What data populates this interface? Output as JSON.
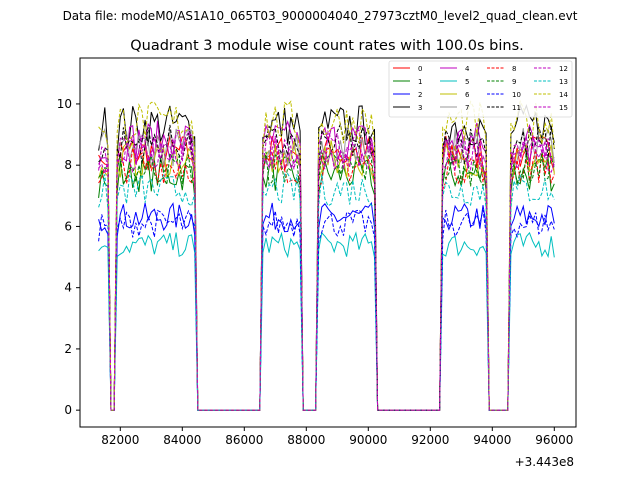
{
  "header": {
    "datafile": "Data file: modeM0/AS1A10_065T03_9000004040_27973cztM0_level2_quad_clean.evt"
  },
  "chart_data": {
    "type": "line",
    "title": "Quadrant 3 module wise count rates with 100.0s bins.",
    "xlabel": "",
    "ylabel": "",
    "x_offset_label": "+3.443e8",
    "xlim": [
      80700,
      96700
    ],
    "ylim": [
      -0.55,
      11.5
    ],
    "x_ticks": [
      82000,
      84000,
      86000,
      88000,
      90000,
      92000,
      94000,
      96000
    ],
    "x_tick_labels": [
      "82000",
      "84000",
      "86000",
      "88000",
      "90000",
      "92000",
      "94000",
      "96000"
    ],
    "y_ticks": [
      0,
      2,
      4,
      6,
      8,
      10
    ],
    "y_tick_labels": [
      "0",
      "2",
      "4",
      "6",
      "8",
      "10"
    ],
    "grid": false,
    "legend_position": "top-right",
    "x_start": 81300,
    "bin_seconds": 100,
    "segments": [
      {
        "x_start": 81300,
        "x_end": 81600
      },
      {
        "x_start": 81900,
        "x_end": 84400
      },
      {
        "x_start": 86600,
        "x_end": 87800
      },
      {
        "x_start": 88400,
        "x_end": 90200
      },
      {
        "x_start": 92400,
        "x_end": 93800
      },
      {
        "x_start": 94600,
        "x_end": 96000
      }
    ],
    "series": [
      {
        "name": "0",
        "color": "#ff0000",
        "dash": "solid",
        "level": 8.4
      },
      {
        "name": "1",
        "color": "#008000",
        "dash": "solid",
        "level": 7.7
      },
      {
        "name": "2",
        "color": "#0000ff",
        "dash": "solid",
        "level": 6.3
      },
      {
        "name": "3",
        "color": "#000000",
        "dash": "solid",
        "level": 9.3
      },
      {
        "name": "4",
        "color": "#bf00bf",
        "dash": "solid",
        "level": 8.8
      },
      {
        "name": "5",
        "color": "#00bfbf",
        "dash": "solid",
        "level": 5.4
      },
      {
        "name": "6",
        "color": "#bfbf00",
        "dash": "solid",
        "level": 8.2
      },
      {
        "name": "7",
        "color": "#999999",
        "dash": "solid",
        "level": 8.6
      },
      {
        "name": "8",
        "color": "#ff0000",
        "dash": "dashed",
        "level": 8.0
      },
      {
        "name": "9",
        "color": "#008000",
        "dash": "dashed",
        "level": 7.9
      },
      {
        "name": "10",
        "color": "#0000ff",
        "dash": "dashed",
        "level": 6.1
      },
      {
        "name": "11",
        "color": "#000000",
        "dash": "dashed",
        "level": 8.7
      },
      {
        "name": "12",
        "color": "#bf00bf",
        "dash": "dashed",
        "level": 8.5
      },
      {
        "name": "13",
        "color": "#00bfbf",
        "dash": "dashed",
        "level": 7.2
      },
      {
        "name": "14",
        "color": "#bfbf00",
        "dash": "dashed",
        "level": 9.4
      },
      {
        "name": "15",
        "color": "#bf00bf",
        "dash": "dashed",
        "level": 8.3
      }
    ]
  }
}
